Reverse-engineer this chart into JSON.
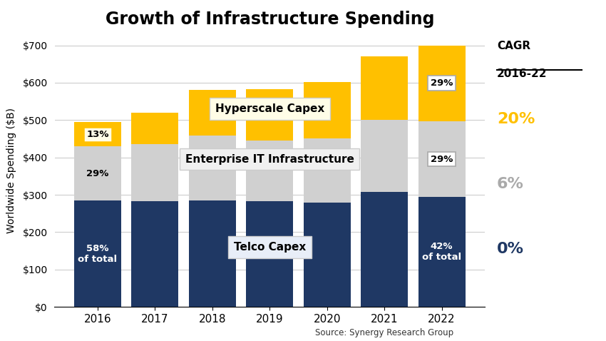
{
  "title": "Growth of Infrastructure Spending",
  "ylabel": "Worldwide Spending ($B)",
  "source": "Source: Synergy Research Group",
  "years": [
    2016,
    2017,
    2018,
    2019,
    2020,
    2021,
    2022
  ],
  "telco": [
    285,
    283,
    285,
    283,
    280,
    308,
    294
  ],
  "enterprise": [
    144,
    153,
    173,
    163,
    170,
    192,
    203
  ],
  "hyperscale": [
    66,
    84,
    122,
    137,
    152,
    170,
    203
  ],
  "colors": {
    "telco": "#1F3864",
    "enterprise": "#D0D0D0",
    "hyperscale": "#FFC000"
  },
  "annotations_2016": {
    "telco_pct": "58%\nof total",
    "enterprise_pct": "29%",
    "hyperscale_pct": "13%"
  },
  "annotations_2022": {
    "telco_pct": "42%\nof total",
    "enterprise_pct": "29%",
    "hyperscale_pct": "29%"
  },
  "cagr_label_line1": "CAGR",
  "cagr_label_line2": "2016-22",
  "cagr_hyperscale": "20%",
  "cagr_enterprise": "6%",
  "cagr_telco": "0%",
  "labels": {
    "hyperscale": "Hyperscale Capex",
    "enterprise": "Enterprise IT Infrastructure",
    "telco": "Telco Capex"
  },
  "ylim": [
    0,
    730
  ],
  "yticks": [
    0,
    100,
    200,
    300,
    400,
    500,
    600,
    700
  ],
  "figsize": [
    8.5,
    4.78
  ],
  "dpi": 100,
  "background": "#FFFFFF"
}
